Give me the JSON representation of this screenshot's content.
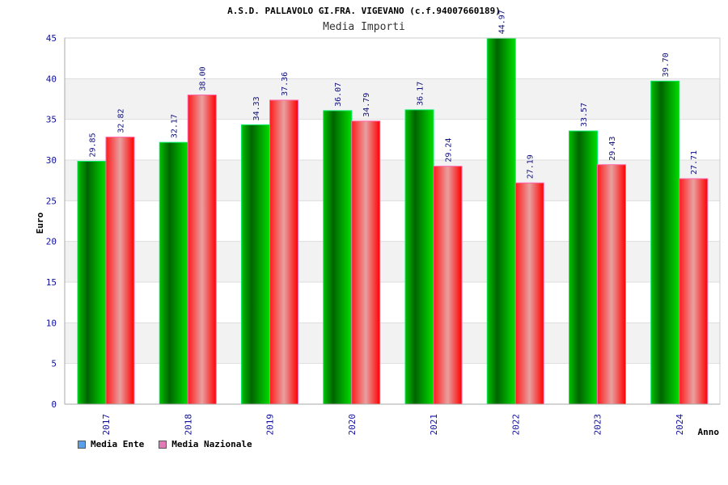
{
  "chart_data": {
    "type": "bar",
    "title": "A.S.D. PALLAVOLO GI.FRA. VIGEVANO (c.f.94007660189)",
    "subtitle": "Media Importi",
    "xlabel": "Anno",
    "ylabel": "Euro",
    "ylim": [
      0,
      45
    ],
    "yticks": [
      "0",
      "5",
      "10",
      "15",
      "20",
      "25",
      "30",
      "35",
      "40",
      "45"
    ],
    "categories": [
      "2017",
      "2018",
      "2019",
      "2020",
      "2021",
      "2022",
      "2023",
      "2024"
    ],
    "series": [
      {
        "name": "Media Ente",
        "values": [
          29.85,
          32.17,
          34.33,
          36.07,
          36.17,
          44.97,
          33.57,
          39.7
        ],
        "labels": [
          "29.85",
          "32.17",
          "34.33",
          "36.07",
          "36.17",
          "44.97",
          "33.57",
          "39.70"
        ],
        "color": "#00aa00",
        "legend_color": "#5aa0e8"
      },
      {
        "name": "Media Nazionale",
        "values": [
          32.82,
          38.0,
          37.36,
          34.79,
          29.24,
          27.19,
          29.43,
          27.71
        ],
        "labels": [
          "32.82",
          "38.00",
          "37.36",
          "34.79",
          "29.24",
          "27.19",
          "29.43",
          "27.71"
        ],
        "color": "#ee1111",
        "legend_color": "#e07ab8"
      }
    ],
    "grid": true,
    "legend": "bottom-left"
  }
}
